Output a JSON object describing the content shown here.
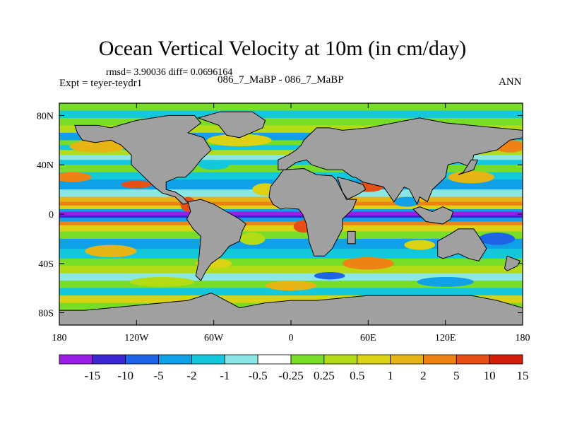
{
  "chart_data": {
    "type": "heatmap",
    "title": "Ocean Vertical Velocity at 10m (in cm/day)",
    "stats_label": "rmsd= 3.90036 diff= 0.0696164",
    "experiment_label": "Expt = teyer-teydr1",
    "runs_label": "086_7_MaBP - 086_7_MaBP",
    "season_label": "ANN",
    "x_ticks": [
      {
        "value": -180,
        "label": "180"
      },
      {
        "value": -120,
        "label": "120W"
      },
      {
        "value": -60,
        "label": "60W"
      },
      {
        "value": 0,
        "label": "0"
      },
      {
        "value": 60,
        "label": "60E"
      },
      {
        "value": 120,
        "label": "120E"
      },
      {
        "value": 180,
        "label": "180"
      }
    ],
    "y_ticks": [
      {
        "value": 80,
        "label": "80N"
      },
      {
        "value": 40,
        "label": "40N"
      },
      {
        "value": 0,
        "label": "0"
      },
      {
        "value": -40,
        "label": "40S"
      },
      {
        "value": -80,
        "label": "80S"
      }
    ],
    "xlim": [
      -180,
      180
    ],
    "ylim": [
      -90,
      90
    ],
    "colorbar": {
      "levels": [
        "-15",
        "-10",
        "-5",
        "-2",
        "-1",
        "-0.5",
        "-0.25",
        "0.25",
        "0.5",
        "1",
        "2",
        "5",
        "10",
        "15"
      ],
      "colors": [
        "#9b1ee6",
        "#3c28d2",
        "#1e64e6",
        "#10a0e8",
        "#14c8dc",
        "#8ce6e6",
        "#ffffff",
        "#78dc28",
        "#b4dc14",
        "#dcd214",
        "#e6b414",
        "#ee8214",
        "#e65014",
        "#d21e0a"
      ]
    },
    "land_color": "#a0a0a0",
    "field_description": "Strong negative (upwelling) band along the equator in Pacific and Atlantic; positive values flank the equator and along coasts"
  }
}
